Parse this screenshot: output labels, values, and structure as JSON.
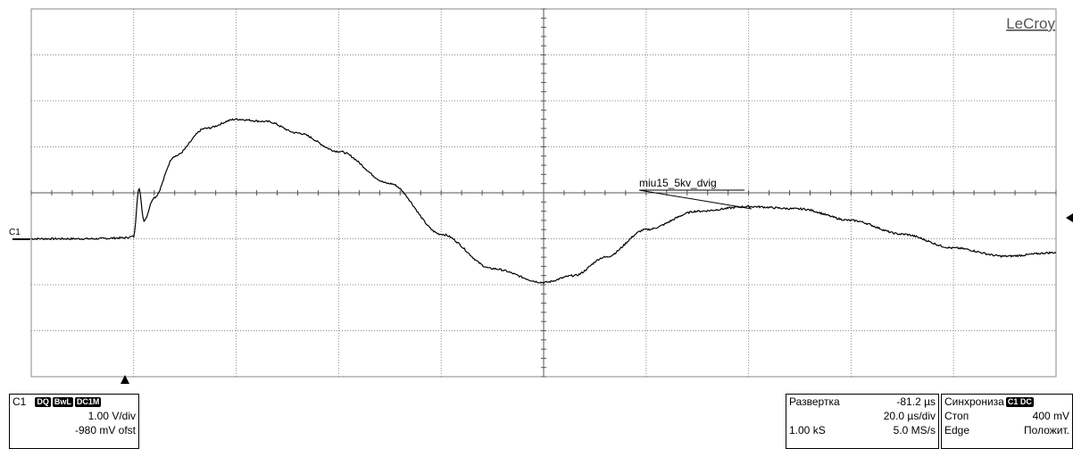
{
  "brand": "LeCroy",
  "trace_label": "C1",
  "annotation": "miu15_5kv_dvig",
  "colors": {
    "grid": "#8a8a8a",
    "trace": "#000000",
    "background": "#ffffff"
  },
  "channel_panel": {
    "name": "C1",
    "badges": [
      "DQ",
      "BwL",
      "DC1M"
    ],
    "scale": "1.00 V/div",
    "offset": "-980 mV ofst"
  },
  "timebase_panel": {
    "label": "Развертка",
    "delay": "-81.2 µs",
    "time_per_div": "20.0 µs/div",
    "samples": "1.00 kS",
    "sample_rate": "5.0 MS/s"
  },
  "trigger_panel": {
    "label": "Синхрониза",
    "badge": "C1 DC",
    "mode": "Стоп",
    "level": "400 mV",
    "type": "Edge",
    "slope": "Положит."
  },
  "chart_data": {
    "type": "line",
    "title": "",
    "xlabel": "",
    "ylabel": "",
    "divisions": {
      "x": 10,
      "y": 8
    },
    "ylim_div": [
      -4,
      4
    ],
    "xlim_div": [
      0,
      10
    ],
    "series": [
      {
        "x": [
          0,
          0.3,
          0.6,
          0.9,
          1.0,
          1.05,
          1.1,
          1.2,
          1.4,
          1.7,
          2.0,
          2.3,
          2.6,
          3.0,
          3.5,
          4.0,
          4.5,
          5.0,
          5.3,
          5.6,
          6.0,
          6.5,
          7.0,
          7.5,
          8.0,
          8.5,
          9.0,
          9.5,
          10.0
        ],
        "y": [
          -1.0,
          -1.0,
          -1.0,
          -0.98,
          -0.95,
          0.1,
          -0.6,
          -0.1,
          0.8,
          1.4,
          1.6,
          1.55,
          1.3,
          0.9,
          0.2,
          -0.9,
          -1.65,
          -1.95,
          -1.8,
          -1.4,
          -0.8,
          -0.4,
          -0.3,
          -0.35,
          -0.6,
          -0.9,
          -1.2,
          -1.38,
          -1.3
        ]
      }
    ]
  }
}
